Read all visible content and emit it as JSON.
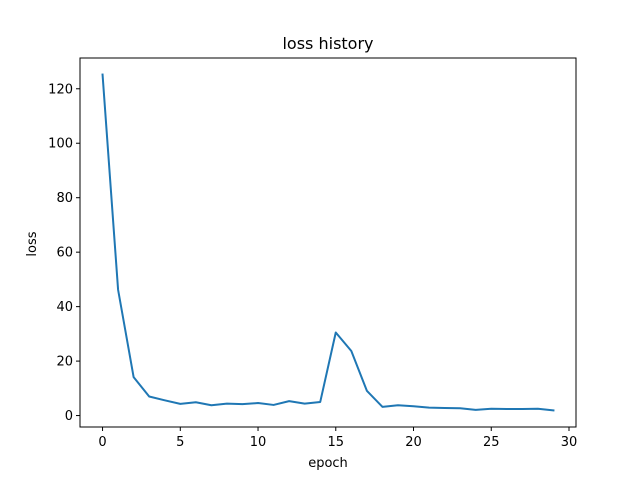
{
  "chart_data": {
    "type": "line",
    "title": "loss history",
    "xlabel": "epoch",
    "ylabel": "loss",
    "xlim": [
      -1.45,
      30.45
    ],
    "ylim": [
      -4.2,
      131.3
    ],
    "xticks": [
      0,
      5,
      10,
      15,
      20,
      25,
      30
    ],
    "yticks": [
      0,
      20,
      40,
      60,
      80,
      100,
      120
    ],
    "grid": false,
    "line_color": "#1f77b4",
    "series": [
      {
        "x": [
          0,
          1,
          2,
          3,
          4,
          5,
          6,
          7,
          8,
          9,
          10,
          11,
          12,
          13,
          14,
          15,
          16,
          17,
          18,
          19,
          20,
          21,
          22,
          23,
          24,
          25,
          26,
          27,
          28,
          29
        ],
        "values": [
          125.2,
          46.2,
          14.1,
          7.0,
          5.6,
          4.3,
          4.9,
          3.8,
          4.4,
          4.2,
          4.6,
          3.9,
          5.3,
          4.4,
          5.0,
          30.5,
          23.7,
          9.1,
          3.2,
          3.8,
          3.4,
          2.9,
          2.8,
          2.7,
          2.1,
          2.5,
          2.4,
          2.4,
          2.5,
          1.9
        ]
      }
    ]
  }
}
